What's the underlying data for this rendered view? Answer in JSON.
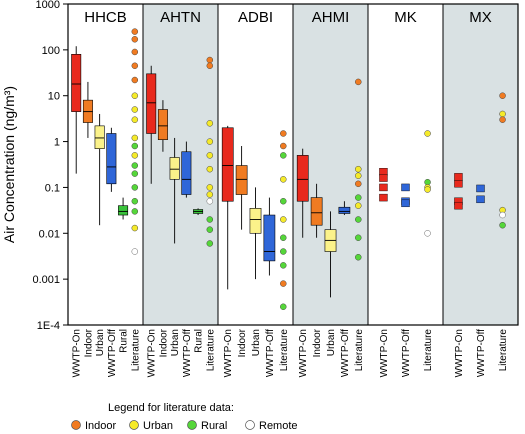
{
  "chart_data": {
    "type": "boxplot",
    "ylabel": "Air Concentration (ng/m³)",
    "yscale": "log",
    "ylim": [
      0.0001,
      1000
    ],
    "y_ticks": [
      "1000",
      "100",
      "10",
      "1",
      "0.1",
      "0.01",
      "0.001",
      "1E-4"
    ],
    "y_tick_values": [
      1000,
      100,
      10,
      1,
      0.1,
      0.01,
      0.001,
      0.0001
    ],
    "colors": {
      "WWTP-On": "#e8291d",
      "Indoor": "#f07b22",
      "Urban": "#fbf28a",
      "WWTP-Off": "#2f66d8",
      "Rural": "#39c23a",
      "lit_indoor": "#f07b22",
      "lit_urban": "#f5ea2a",
      "lit_rural": "#55d63a",
      "lit_remote": "#ffffff",
      "shade": "#d9e1e3"
    },
    "panels": [
      {
        "title": "HHCB",
        "shaded": false,
        "categories": [
          "WWTP-On",
          "Indoor",
          "Urban",
          "WWTP-Off",
          "Rural",
          "Literature"
        ],
        "boxes": [
          {
            "cat": "WWTP-On",
            "whislo": 0.2,
            "q1": 4.5,
            "med": 18,
            "q3": 80,
            "whishi": 120
          },
          {
            "cat": "Indoor",
            "whislo": 1.2,
            "q1": 2.6,
            "med": 4.5,
            "q3": 8,
            "whishi": 20
          },
          {
            "cat": "Urban",
            "whislo": 0.015,
            "q1": 0.7,
            "med": 1.2,
            "q3": 2.2,
            "whishi": 4
          },
          {
            "cat": "WWTP-Off",
            "whislo": 0.08,
            "q1": 0.12,
            "med": 0.28,
            "q3": 1.5,
            "whishi": 2
          },
          {
            "cat": "Rural",
            "whislo": 0.02,
            "q1": 0.025,
            "med": 0.03,
            "q3": 0.04,
            "whishi": 0.06
          }
        ],
        "literature": [
          {
            "v": 250,
            "t": "Indoor"
          },
          {
            "v": 170,
            "t": "Indoor"
          },
          {
            "v": 90,
            "t": "Indoor"
          },
          {
            "v": 45,
            "t": "Indoor"
          },
          {
            "v": 22,
            "t": "Indoor"
          },
          {
            "v": 10,
            "t": "Urban"
          },
          {
            "v": 5,
            "t": "Urban"
          },
          {
            "v": 3,
            "t": "Urban"
          },
          {
            "v": 1.2,
            "t": "Urban"
          },
          {
            "v": 0.8,
            "t": "Rural"
          },
          {
            "v": 0.5,
            "t": "Urban"
          },
          {
            "v": 0.3,
            "t": "Rural"
          },
          {
            "v": 0.2,
            "t": "Rural"
          },
          {
            "v": 0.1,
            "t": "Rural"
          },
          {
            "v": 0.05,
            "t": "Rural"
          },
          {
            "v": 0.03,
            "t": "Rural"
          },
          {
            "v": 0.013,
            "t": "Urban"
          },
          {
            "v": 0.004,
            "t": "Remote"
          }
        ]
      },
      {
        "title": "AHTN",
        "shaded": true,
        "categories": [
          "WWTP-On",
          "Indoor",
          "Urban",
          "WWTP-Off",
          "Rural",
          "Literature"
        ],
        "boxes": [
          {
            "cat": "WWTP-On",
            "whislo": 0.12,
            "q1": 1.5,
            "med": 7,
            "q3": 30,
            "whishi": 45
          },
          {
            "cat": "Indoor",
            "whislo": 0.6,
            "q1": 1.1,
            "med": 2.2,
            "q3": 5,
            "whishi": 8
          },
          {
            "cat": "Urban",
            "whislo": 0.006,
            "q1": 0.15,
            "med": 0.25,
            "q3": 0.45,
            "whishi": 1.2
          },
          {
            "cat": "WWTP-Off",
            "whislo": 0.06,
            "q1": 0.07,
            "med": 0.15,
            "q3": 0.6,
            "whishi": 1.0
          },
          {
            "cat": "Rural",
            "whislo": 0.025,
            "q1": 0.027,
            "med": 0.03,
            "q3": 0.033,
            "whishi": 0.035
          }
        ],
        "literature": [
          {
            "v": 60,
            "t": "Indoor"
          },
          {
            "v": 45,
            "t": "Indoor"
          },
          {
            "v": 2.5,
            "t": "Urban"
          },
          {
            "v": 1.0,
            "t": "Urban"
          },
          {
            "v": 0.5,
            "t": "Urban"
          },
          {
            "v": 0.25,
            "t": "Urban"
          },
          {
            "v": 0.1,
            "t": "Urban"
          },
          {
            "v": 0.07,
            "t": "Urban"
          },
          {
            "v": 0.05,
            "t": "Remote"
          },
          {
            "v": 0.02,
            "t": "Rural"
          },
          {
            "v": 0.012,
            "t": "Rural"
          },
          {
            "v": 0.006,
            "t": "Rural"
          }
        ]
      },
      {
        "title": "ADBI",
        "shaded": false,
        "categories": [
          "WWTP-On",
          "Indoor",
          "Urban",
          "WWTP-Off",
          "Literature"
        ],
        "boxes": [
          {
            "cat": "WWTP-On",
            "whislo": 0.0006,
            "q1": 0.05,
            "med": 0.3,
            "q3": 2.0,
            "whishi": 2.2
          },
          {
            "cat": "Indoor",
            "whislo": 0.012,
            "q1": 0.07,
            "med": 0.15,
            "q3": 0.3,
            "whishi": 0.8
          },
          {
            "cat": "Urban",
            "whislo": 0.001,
            "q1": 0.01,
            "med": 0.02,
            "q3": 0.035,
            "whishi": 0.1
          },
          {
            "cat": "WWTP-Off",
            "whislo": 0.0012,
            "q1": 0.0025,
            "med": 0.004,
            "q3": 0.025,
            "whishi": 0.06
          }
        ],
        "literature": [
          {
            "v": 1.5,
            "t": "Indoor"
          },
          {
            "v": 0.8,
            "t": "Indoor"
          },
          {
            "v": 0.5,
            "t": "Rural"
          },
          {
            "v": 0.15,
            "t": "Urban"
          },
          {
            "v": 0.05,
            "t": "Rural"
          },
          {
            "v": 0.02,
            "t": "Urban"
          },
          {
            "v": 0.008,
            "t": "Rural"
          },
          {
            "v": 0.004,
            "t": "Rural"
          },
          {
            "v": 0.002,
            "t": "Rural"
          },
          {
            "v": 0.0008,
            "t": "Indoor"
          },
          {
            "v": 0.00025,
            "t": "Rural"
          }
        ]
      },
      {
        "title": "AHMI",
        "shaded": true,
        "categories": [
          "WWTP-On",
          "Indoor",
          "Urban",
          "WWTP-Off",
          "Literature"
        ],
        "boxes": [
          {
            "cat": "WWTP-On",
            "whislo": 0.008,
            "q1": 0.05,
            "med": 0.15,
            "q3": 0.5,
            "whishi": 0.7
          },
          {
            "cat": "Indoor",
            "whislo": 0.008,
            "q1": 0.015,
            "med": 0.028,
            "q3": 0.06,
            "whishi": 0.12
          },
          {
            "cat": "Urban",
            "whislo": 0.0004,
            "q1": 0.004,
            "med": 0.007,
            "q3": 0.012,
            "whishi": 0.03
          },
          {
            "cat": "WWTP-Off",
            "whislo": 0.025,
            "q1": 0.027,
            "med": 0.03,
            "q3": 0.037,
            "whishi": 0.05
          }
        ],
        "literature": [
          {
            "v": 20,
            "t": "Indoor"
          },
          {
            "v": 0.25,
            "t": "Urban"
          },
          {
            "v": 0.18,
            "t": "Urban"
          },
          {
            "v": 0.12,
            "t": "Indoor"
          },
          {
            "v": 0.06,
            "t": "Rural"
          },
          {
            "v": 0.04,
            "t": "Urban"
          },
          {
            "v": 0.02,
            "t": "Rural"
          },
          {
            "v": 0.008,
            "t": "Rural"
          },
          {
            "v": 0.003,
            "t": "Rural"
          }
        ]
      },
      {
        "title": "MK",
        "shaded": false,
        "categories": [
          "WWTP-On",
          "WWTP-Off",
          "Literature"
        ],
        "squares": [
          {
            "cat": "WWTP-On",
            "values": [
              0.22,
              0.16,
              0.1,
              0.06
            ]
          },
          {
            "cat": "WWTP-Off",
            "values": [
              0.1,
              0.05,
              0.045
            ]
          }
        ],
        "literature": [
          {
            "v": 1.5,
            "t": "Urban"
          },
          {
            "v": 0.13,
            "t": "Rural"
          },
          {
            "v": 0.1,
            "t": "Urban"
          },
          {
            "v": 0.09,
            "t": "Urban"
          },
          {
            "v": 0.01,
            "t": "Remote"
          }
        ]
      },
      {
        "title": "MX",
        "shaded": true,
        "categories": [
          "WWTP-On",
          "WWTP-Off",
          "Literature"
        ],
        "squares": [
          {
            "cat": "WWTP-On",
            "values": [
              0.17,
              0.12,
              0.05,
              0.04
            ]
          },
          {
            "cat": "WWTP-Off",
            "values": [
              0.095,
              0.055
            ]
          }
        ],
        "literature": [
          {
            "v": 10,
            "t": "Indoor"
          },
          {
            "v": 4,
            "t": "Urban"
          },
          {
            "v": 3,
            "t": "Indoor"
          },
          {
            "v": 0.032,
            "t": "Urban"
          },
          {
            "v": 0.025,
            "t": "Remote"
          },
          {
            "v": 0.015,
            "t": "Rural"
          }
        ]
      }
    ],
    "legend": {
      "title": "Legend for literature data:",
      "placement": "bottom",
      "entries": [
        {
          "label": "Indoor",
          "color": "#f07b22"
        },
        {
          "label": "Urban",
          "color": "#f5ea2a"
        },
        {
          "label": "Rural",
          "color": "#55d63a"
        },
        {
          "label": "Remote",
          "color": "#ffffff"
        }
      ]
    }
  }
}
